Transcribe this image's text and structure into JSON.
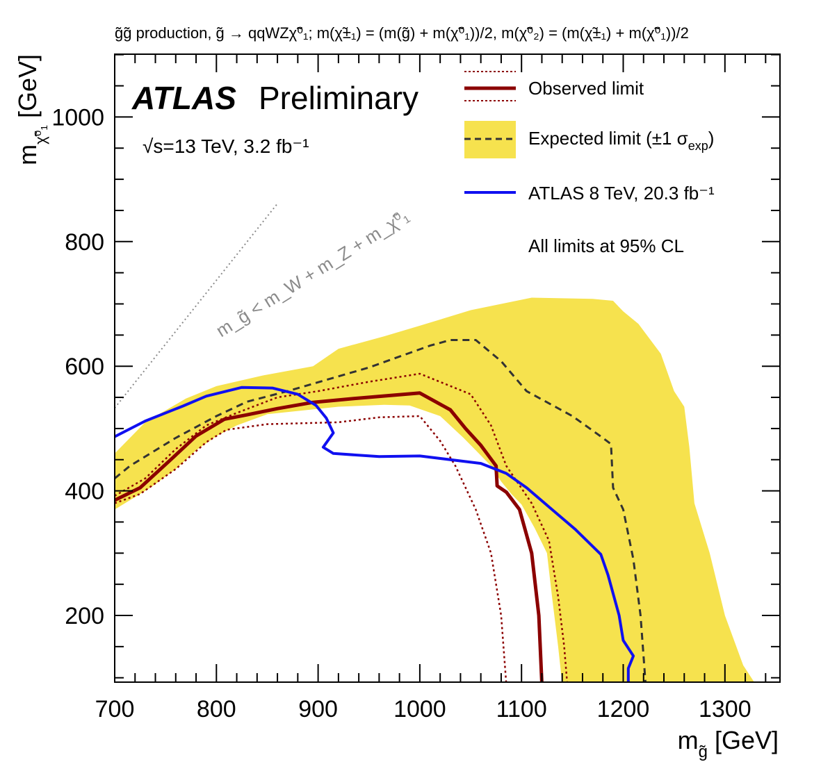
{
  "chart_data": {
    "type": "line",
    "title": "g̃g̃ production, g̃ → qqWZχ̃⁰₁; m(χ̃±₁) = (m(g̃) + m(χ̃⁰₁))/2, m(χ̃⁰₂) = (m(χ̃±₁) + m(χ̃⁰₁))/2",
    "experiment": "ATLAS",
    "status": "Preliminary",
    "energy_lumi": "√s=13 TeV, 3.2 fb⁻¹",
    "xlabel": "m_g̃ [GeV]",
    "ylabel": "m_χ̃⁰₁ [GeV]",
    "xlim": [
      700,
      1350
    ],
    "ylim": [
      90,
      1100
    ],
    "xticks": [
      700,
      800,
      900,
      1000,
      1100,
      1200,
      1300
    ],
    "yticks": [
      200,
      400,
      600,
      800,
      1000
    ],
    "grid": false,
    "legend_position": "top-right",
    "legend": {
      "observed": "Observed limit",
      "expected": "Expected limit (±1 σ",
      "expected_sub": "exp",
      "expected_close": ")",
      "atlas8": "ATLAS 8 TeV, 20.3 fb⁻¹",
      "note": "All limits at 95% CL"
    },
    "diagonal_label": "m_g̃ < m_W + m_Z + m_χ̃⁰₁",
    "colors": {
      "band": "#f6e24e",
      "observed": "#8b0000",
      "expected": "#333333",
      "atlas8": "#1010f0",
      "diagonal": "#8a8a8a"
    },
    "series": [
      {
        "name": "Observed limit",
        "style": "solid",
        "points": [
          [
            700,
            385
          ],
          [
            725,
            405
          ],
          [
            755,
            450
          ],
          [
            780,
            488
          ],
          [
            808,
            515
          ],
          [
            830,
            522
          ],
          [
            860,
            532
          ],
          [
            895,
            542
          ],
          [
            935,
            548
          ],
          [
            1000,
            557
          ],
          [
            1030,
            530
          ],
          [
            1045,
            500
          ],
          [
            1060,
            473
          ],
          [
            1075,
            440
          ],
          [
            1076,
            408
          ],
          [
            1085,
            398
          ],
          [
            1098,
            370
          ],
          [
            1110,
            300
          ],
          [
            1117,
            200
          ],
          [
            1120,
            90
          ]
        ]
      },
      {
        "name": "Observed limit -1σ theory",
        "style": "dotted",
        "points": [
          [
            700,
            380
          ],
          [
            725,
            395
          ],
          [
            760,
            435
          ],
          [
            790,
            478
          ],
          [
            810,
            498
          ],
          [
            850,
            507
          ],
          [
            920,
            510
          ],
          [
            960,
            518
          ],
          [
            1000,
            520
          ],
          [
            1020,
            480
          ],
          [
            1035,
            440
          ],
          [
            1055,
            370
          ],
          [
            1070,
            300
          ],
          [
            1080,
            200
          ],
          [
            1085,
            90
          ]
        ]
      },
      {
        "name": "Observed limit +1σ theory",
        "style": "dotted",
        "points": [
          [
            700,
            392
          ],
          [
            730,
            420
          ],
          [
            760,
            467
          ],
          [
            790,
            505
          ],
          [
            820,
            525
          ],
          [
            860,
            550
          ],
          [
            900,
            560
          ],
          [
            950,
            575
          ],
          [
            1000,
            588
          ],
          [
            1050,
            555
          ],
          [
            1070,
            505
          ],
          [
            1085,
            440
          ],
          [
            1110,
            380
          ],
          [
            1127,
            320
          ],
          [
            1136,
            230
          ],
          [
            1142,
            150
          ],
          [
            1145,
            90
          ]
        ]
      },
      {
        "name": "Expected limit",
        "style": "dashed",
        "points": [
          [
            700,
            420
          ],
          [
            715,
            440
          ],
          [
            760,
            485
          ],
          [
            800,
            520
          ],
          [
            830,
            543
          ],
          [
            870,
            560
          ],
          [
            950,
            598
          ],
          [
            1010,
            633
          ],
          [
            1030,
            642
          ],
          [
            1055,
            642
          ],
          [
            1080,
            608
          ],
          [
            1105,
            560
          ],
          [
            1150,
            520
          ],
          [
            1180,
            485
          ],
          [
            1188,
            475
          ],
          [
            1190,
            405
          ],
          [
            1200,
            370
          ],
          [
            1210,
            290
          ],
          [
            1217,
            200
          ],
          [
            1222,
            90
          ]
        ]
      },
      {
        "name": "ATLAS 8 TeV, 20.3 fb⁻¹",
        "style": "solid",
        "points": [
          [
            700,
            487
          ],
          [
            730,
            512
          ],
          [
            767,
            536
          ],
          [
            790,
            552
          ],
          [
            825,
            566
          ],
          [
            855,
            565
          ],
          [
            880,
            555
          ],
          [
            898,
            537
          ],
          [
            908,
            517
          ],
          [
            915,
            493
          ],
          [
            905,
            470
          ],
          [
            915,
            460
          ],
          [
            960,
            455
          ],
          [
            1000,
            456
          ],
          [
            1060,
            444
          ],
          [
            1085,
            428
          ],
          [
            1105,
            405
          ],
          [
            1130,
            370
          ],
          [
            1153,
            338
          ],
          [
            1178,
            298
          ],
          [
            1185,
            265
          ],
          [
            1196,
            200
          ],
          [
            1200,
            160
          ],
          [
            1210,
            135
          ],
          [
            1205,
            115
          ],
          [
            1205,
            90
          ]
        ]
      }
    ],
    "band": {
      "name": "Expected limit (±1 σ_exp)",
      "upper": [
        [
          700,
          460
        ],
        [
          730,
          510
        ],
        [
          770,
          548
        ],
        [
          800,
          568
        ],
        [
          845,
          585
        ],
        [
          895,
          600
        ],
        [
          920,
          628
        ],
        [
          965,
          648
        ],
        [
          1000,
          665
        ],
        [
          1050,
          690
        ],
        [
          1110,
          710
        ],
        [
          1170,
          708
        ],
        [
          1190,
          705
        ],
        [
          1200,
          688
        ],
        [
          1215,
          668
        ],
        [
          1237,
          620
        ],
        [
          1250,
          560
        ],
        [
          1260,
          535
        ],
        [
          1265,
          470
        ],
        [
          1270,
          380
        ],
        [
          1285,
          300
        ],
        [
          1300,
          200
        ],
        [
          1318,
          120
        ],
        [
          1330,
          90
        ]
      ],
      "lower": [
        [
          700,
          370
        ],
        [
          735,
          405
        ],
        [
          760,
          435
        ],
        [
          780,
          465
        ],
        [
          800,
          488
        ],
        [
          820,
          505
        ],
        [
          850,
          523
        ],
        [
          920,
          535
        ],
        [
          965,
          538
        ],
        [
          990,
          537
        ],
        [
          1020,
          520
        ],
        [
          1043,
          485
        ],
        [
          1055,
          465
        ],
        [
          1070,
          440
        ],
        [
          1080,
          415
        ],
        [
          1090,
          395
        ],
        [
          1100,
          378
        ],
        [
          1113,
          340
        ],
        [
          1125,
          300
        ],
        [
          1130,
          230
        ],
        [
          1136,
          150
        ],
        [
          1140,
          90
        ]
      ]
    },
    "diagonal": [
      [
        700,
        533
      ],
      [
        860,
        861
      ]
    ]
  }
}
